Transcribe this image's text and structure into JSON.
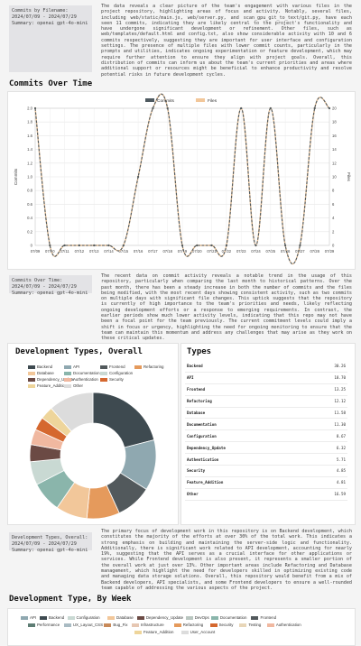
{
  "summaries": {
    "filename": {
      "label_line1": "Commits by Filename:",
      "label_line2": "2024/07/09 - 2024/07/29",
      "label_line3": "Summary: openai gpt-4o-mini",
      "text": "The data reveals a clear picture of the team's engagement with various files in the project repository, highlighting areas of focus and activity. Notably, several files, including web/static/main.js, web/server.py, and scan_gpu_git_to_text/git.py, have each seen 11 commits, indicating they are likely central to the project's functionality and have undergone significant development or refinement. Other files, such as web/templates/default.html and config.txt, also show considerable activity with 10 and 6 commits respectively, suggesting they are important for user interface and configuration settings. The presence of multiple files with lower commit counts, particularly in the prompts and utilities, indicates ongoing experimentation or feature development, which may require further attention to ensure they align with project goals. Overall, this distribution of commits can inform us about the team's current priorities and areas where additional support or resources might be beneficial to enhance productivity and resolve potential risks in future development cycles."
    },
    "commits": {
      "label_line1": "Commits Over Time:",
      "label_line2": "2024/07/09 - 2024/07/29",
      "label_line3": "Summary: openai gpt-4o-mini",
      "text": "The recent data on commit activity reveals a notable trend in the usage of this repository, particularly when comparing the last month to historical patterns. Over the past month, there has been a steady increase in both the number of commits and the files being modified, with the most recent days showing consistent activity, such as two commits on multiple days with significant file changes. This uptick suggests that the repository is currently of high importance to the team's priorities and needs, likely reflecting ongoing development efforts or a response to emerging requirements. In contrast, the earlier periods show much lower activity levels, indicating that this repo may not have been a focal point for the team previously. The current commitment levels could imply a shift in focus or urgency, highlighting the need for ongoing monitoring to ensure that the team can maintain this momentum and address any challenges that may arise as they work on these critical updates."
    },
    "devtypes": {
      "label_line1": "Development Types, Overall:",
      "label_line2": "2024/07/09 - 2024/07/29",
      "label_line3": "Summary: openai gpt-4o-mini",
      "text": "The primary focus of development work in this repository is on Backend development, which constitutes the majority of the efforts at over 30% of the total work. This indicates a strong emphasis on building and maintaining the server-side logic and functionality. Additionally, there is significant work related to API development, accounting for nearly 19%, suggesting that the API serves as a crucial interface for other applications or services. While Frontend development is also present, it represents a smaller portion of the overall work at just over 13%. Other important areas include Refactoring and Database management, which highlight the need for developers skilled in optimizing existing code and managing data storage solutions. Overall, this repository would benefit from a mix of Backend developers, API specialists, and some Frontend developers to ensure a well-rounded team capable of addressing the various aspects of the project."
    }
  },
  "sections": {
    "commits_over_time": "Commits Over Time",
    "dev_types_overall": "Development Types, Overall",
    "types": "Types",
    "dev_type_by_week": "Development Type, By Week"
  },
  "chart_data": [
    {
      "type": "line",
      "title": "Commits Over Time",
      "ylabel": "Commits",
      "y2label": "Files",
      "x": [
        "07/09",
        "07/10",
        "07/11",
        "07/12",
        "07/13",
        "07/14",
        "07/15",
        "07/16",
        "07/17",
        "07/18",
        "07/19",
        "07/20",
        "07/21",
        "07/22",
        "07/23",
        "07/24",
        "07/25",
        "07/26",
        "07/27",
        "07/28",
        "07/29"
      ],
      "ylim": [
        0,
        2.0
      ],
      "y2lim": [
        0,
        20
      ],
      "yticks": [
        "0",
        "0.2",
        "0.4",
        "0.6",
        "0.8",
        "1.0",
        "1.2",
        "1.4",
        "1.6",
        "1.8",
        "2.0"
      ],
      "y2ticks": [
        "0",
        "2",
        "4",
        "6",
        "8",
        "10",
        "12",
        "14",
        "16",
        "18",
        "20"
      ],
      "series": [
        {
          "name": "Commits",
          "axis": "left",
          "color": "#4f5a60",
          "values": [
            2,
            0,
            0,
            0,
            0,
            0,
            0,
            1,
            2,
            2,
            0,
            0,
            0,
            0,
            2,
            0,
            2,
            0,
            0,
            2,
            2
          ]
        },
        {
          "name": "Files",
          "axis": "right",
          "color": "#f2c79a",
          "values": [
            20,
            0,
            0,
            0,
            0,
            0,
            0,
            10,
            20,
            20,
            0,
            0,
            0,
            0,
            20,
            0,
            20,
            0,
            0,
            20,
            20
          ]
        }
      ],
      "grid": true,
      "legend": "top-center"
    },
    {
      "type": "pie",
      "title": "Development Types, Overall",
      "legend": "top",
      "categories": [
        "Backend",
        "API",
        "Frontend",
        "Refactoring",
        "Database",
        "Documentation",
        "Configuration",
        "Dependency_Update",
        "Authentication",
        "Security",
        "Feature_Addition",
        "Other"
      ],
      "colors": [
        "#3e4a50",
        "#8fa8b0",
        "#52595c",
        "#e59a5c",
        "#f2c79a",
        "#8ab5ab",
        "#c9d9d3",
        "#6b4a44",
        "#f0b8a0",
        "#d5682f",
        "#eed59b",
        "#dcdcdc"
      ],
      "values": [
        30.26,
        18.7,
        13.25,
        12.12,
        11.58,
        11.3,
        8.67,
        6.32,
        5.71,
        4.85,
        4.81,
        16.59
      ]
    }
  ],
  "types_table": [
    {
      "name": "Backend",
      "value": "30.26"
    },
    {
      "name": "API",
      "value": "18.70"
    },
    {
      "name": "Frontend",
      "value": "13.25"
    },
    {
      "name": "Refactoring",
      "value": "12.12"
    },
    {
      "name": "Database",
      "value": "11.58"
    },
    {
      "name": "Documentation",
      "value": "11.30"
    },
    {
      "name": "Configuration",
      "value": "8.67"
    },
    {
      "name": "Dependency_Update",
      "value": "6.32"
    },
    {
      "name": "Authentication",
      "value": "5.71"
    },
    {
      "name": "Security",
      "value": "4.85"
    },
    {
      "name": "Feature_Addition",
      "value": "4.81"
    },
    {
      "name": "Other",
      "value": "16.59"
    }
  ],
  "week_legend": [
    {
      "name": "API",
      "color": "#8fa8b0"
    },
    {
      "name": "Backend",
      "color": "#3e4a50"
    },
    {
      "name": "Configuration",
      "color": "#c9d9d3"
    },
    {
      "name": "Database",
      "color": "#f2c79a"
    },
    {
      "name": "Dependency_Update",
      "color": "#6b4a44"
    },
    {
      "name": "DevOps",
      "color": "#b9c6c0"
    },
    {
      "name": "Documentation",
      "color": "#8ab5ab"
    },
    {
      "name": "Frontend",
      "color": "#52595c"
    },
    {
      "name": "Performance",
      "color": "#5e7d74"
    },
    {
      "name": "UX_Layout_CSS",
      "color": "#a9bbc3"
    },
    {
      "name": "Bug_Fix",
      "color": "#c88a5a"
    },
    {
      "name": "Infrastructure",
      "color": "#e6c7b3"
    },
    {
      "name": "Refactoring",
      "color": "#e59a5c"
    },
    {
      "name": "Security",
      "color": "#d5682f"
    },
    {
      "name": "Testing",
      "color": "#e8d6b8"
    },
    {
      "name": "Authentication",
      "color": "#f0b8a0"
    },
    {
      "name": "Feature_Addition",
      "color": "#eed59b"
    },
    {
      "name": "User_Account",
      "color": "#dcdcdc"
    }
  ]
}
